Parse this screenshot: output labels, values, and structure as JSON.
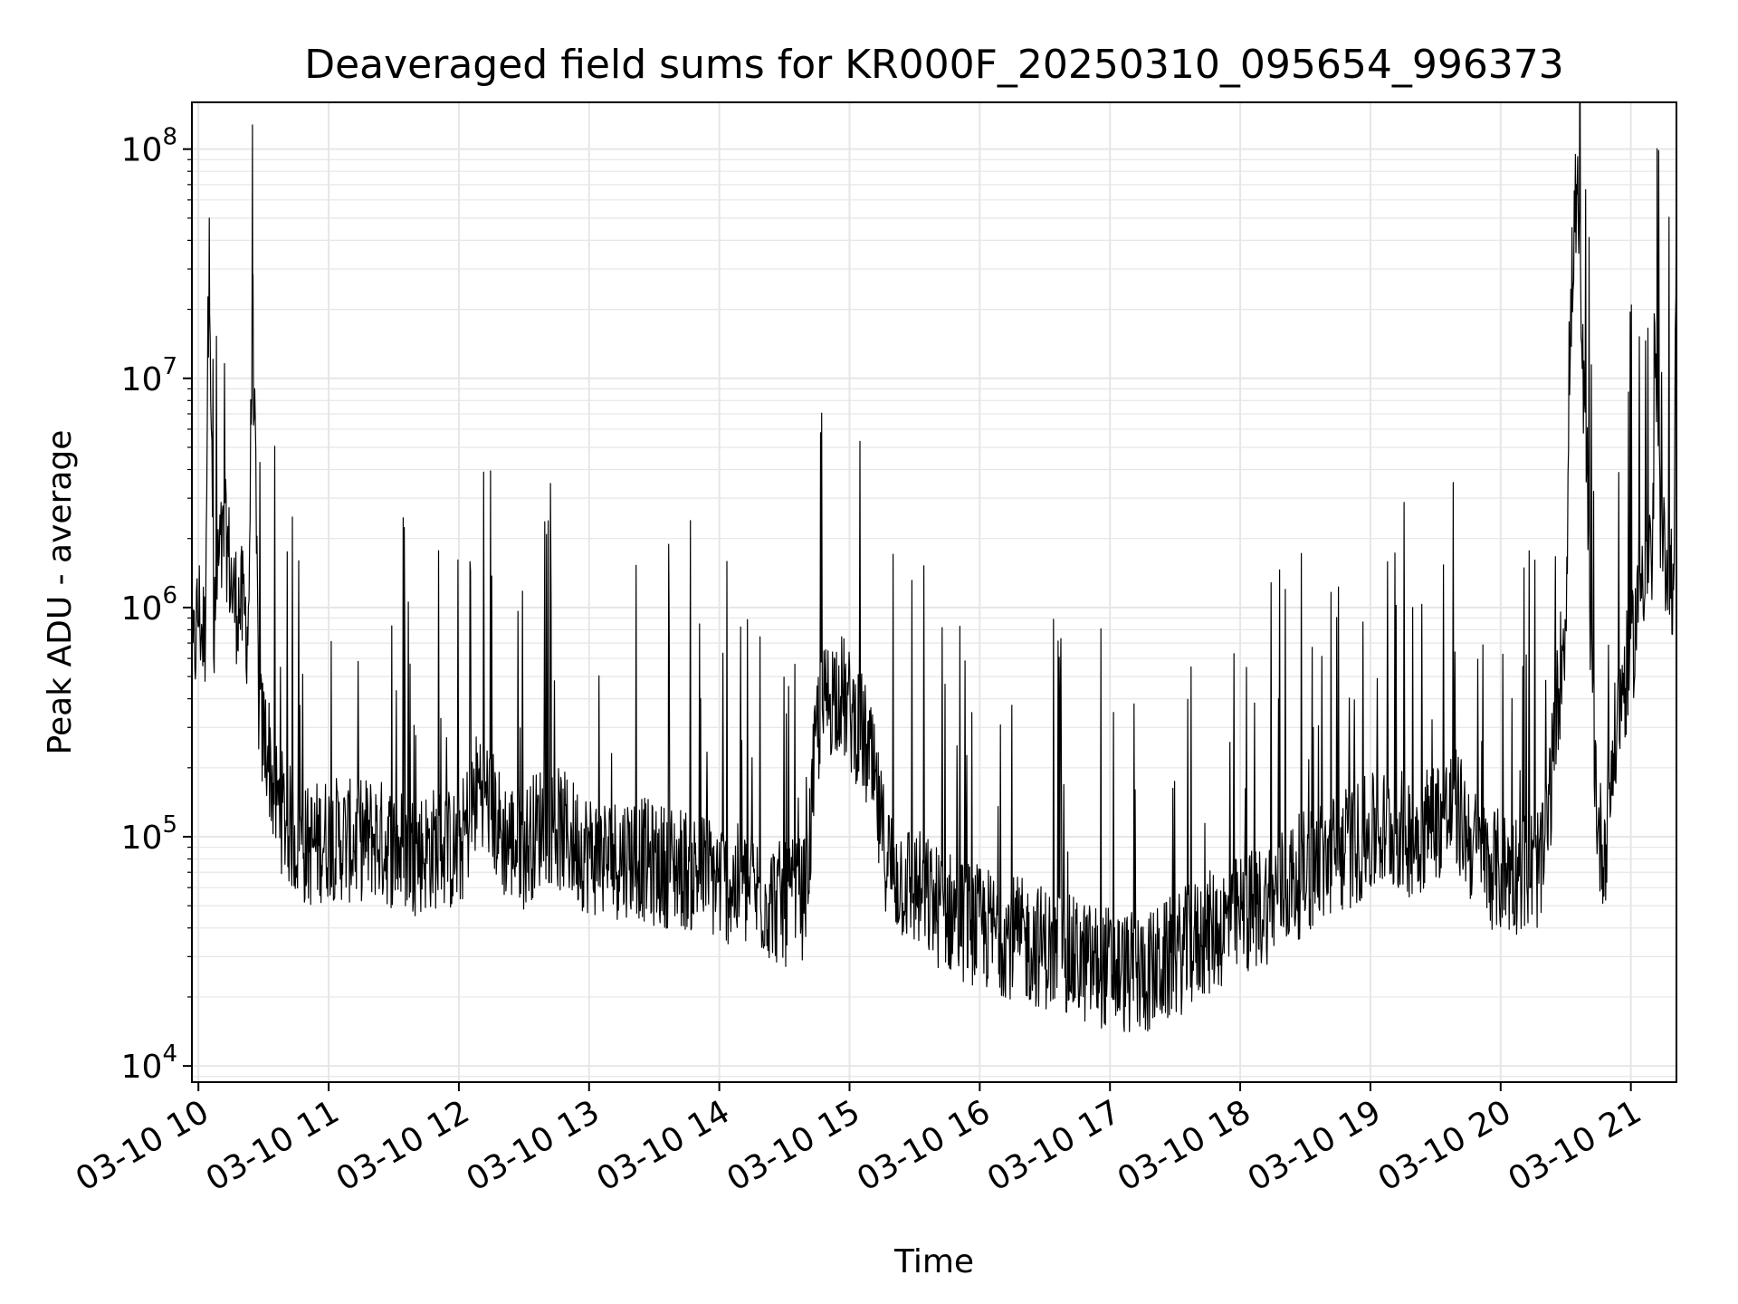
{
  "chart_data": {
    "type": "line",
    "title": "Deaveraged field sums for KR000F_20250310_095654_996373",
    "xlabel": "Time",
    "ylabel": "Peak ADU - average",
    "yscale": "log",
    "ylim": [
      8500,
      160000000
    ],
    "xlim": [
      "2025-03-10 09:57",
      "2025-03-10 21:21"
    ],
    "grid": true,
    "line_color": "#000000",
    "grid_color": "#e6e6e6",
    "x_ticks": [
      {
        "t": "2025-03-10 10:00",
        "label": "03-10 10"
      },
      {
        "t": "2025-03-10 11:00",
        "label": "03-10 11"
      },
      {
        "t": "2025-03-10 12:00",
        "label": "03-10 12"
      },
      {
        "t": "2025-03-10 13:00",
        "label": "03-10 13"
      },
      {
        "t": "2025-03-10 14:00",
        "label": "03-10 14"
      },
      {
        "t": "2025-03-10 15:00",
        "label": "03-10 15"
      },
      {
        "t": "2025-03-10 16:00",
        "label": "03-10 16"
      },
      {
        "t": "2025-03-10 17:00",
        "label": "03-10 17"
      },
      {
        "t": "2025-03-10 18:00",
        "label": "03-10 18"
      },
      {
        "t": "2025-03-10 19:00",
        "label": "03-10 19"
      },
      {
        "t": "2025-03-10 20:00",
        "label": "03-10 20"
      },
      {
        "t": "2025-03-10 21:00",
        "label": "03-10 21"
      }
    ],
    "y_ticks": [
      {
        "value": 10000,
        "mantissa": "10",
        "exp": "4"
      },
      {
        "value": 100000,
        "mantissa": "10",
        "exp": "5"
      },
      {
        "value": 1000000,
        "mantissa": "10",
        "exp": "6"
      },
      {
        "value": 10000000,
        "mantissa": "10",
        "exp": "7"
      },
      {
        "value": 100000000,
        "mantissa": "10",
        "exp": "8"
      }
    ],
    "series": [
      {
        "points": [
          [
            "2025-03-10 09:57",
            500000
          ],
          [
            "2025-03-10 10:00",
            1000000
          ],
          [
            "2025-03-10 10:03",
            700000
          ],
          [
            "2025-03-10 10:05",
            50000000
          ],
          [
            "2025-03-10 10:07",
            600000
          ],
          [
            "2025-03-10 10:09",
            1500000
          ],
          [
            "2025-03-10 10:13",
            2000000
          ],
          [
            "2025-03-10 10:16",
            1100000
          ],
          [
            "2025-03-10 10:20",
            1000000
          ],
          [
            "2025-03-10 10:23",
            800000
          ],
          [
            "2025-03-10 10:25",
            20000000
          ],
          [
            "2025-03-10 10:26",
            5000000
          ],
          [
            "2025-03-10 10:28",
            300000
          ],
          [
            "2025-03-10 10:32",
            250000
          ],
          [
            "2025-03-10 10:35",
            150000
          ],
          [
            "2025-03-10 10:40",
            120000
          ],
          [
            "2025-03-10 10:45",
            100000
          ],
          [
            "2025-03-10 10:50",
            90000
          ],
          [
            "2025-03-10 11:00",
            100000
          ],
          [
            "2025-03-10 11:10",
            95000
          ],
          [
            "2025-03-10 11:20",
            100000
          ],
          [
            "2025-03-10 11:30",
            90000
          ],
          [
            "2025-03-10 11:40",
            85000
          ],
          [
            "2025-03-10 11:50",
            90000
          ],
          [
            "2025-03-10 12:00",
            85000
          ],
          [
            "2025-03-10 12:10",
            180000
          ],
          [
            "2025-03-10 12:20",
            100000
          ],
          [
            "2025-03-10 12:30",
            90000
          ],
          [
            "2025-03-10 12:40",
            120000
          ],
          [
            "2025-03-10 12:50",
            100000
          ],
          [
            "2025-03-10 13:00",
            85000
          ],
          [
            "2025-03-10 13:10",
            80000
          ],
          [
            "2025-03-10 13:20",
            85000
          ],
          [
            "2025-03-10 13:30",
            75000
          ],
          [
            "2025-03-10 13:40",
            75000
          ],
          [
            "2025-03-10 13:50",
            70000
          ],
          [
            "2025-03-10 14:00",
            65000
          ],
          [
            "2025-03-10 14:10",
            60000
          ],
          [
            "2025-03-10 14:20",
            55000
          ],
          [
            "2025-03-10 14:30",
            50000
          ],
          [
            "2025-03-10 14:40",
            55000
          ],
          [
            "2025-03-10 14:45",
            300000
          ],
          [
            "2025-03-10 14:50",
            400000
          ],
          [
            "2025-03-10 14:55",
            450000
          ],
          [
            "2025-03-10 15:00",
            350000
          ],
          [
            "2025-03-10 15:05",
            300000
          ],
          [
            "2025-03-10 15:10",
            200000
          ],
          [
            "2025-03-10 15:15",
            100000
          ],
          [
            "2025-03-10 15:20",
            70000
          ],
          [
            "2025-03-10 15:30",
            60000
          ],
          [
            "2025-03-10 15:40",
            50000
          ],
          [
            "2025-03-10 15:50",
            45000
          ],
          [
            "2025-03-10 16:00",
            40000
          ],
          [
            "2025-03-10 16:10",
            38000
          ],
          [
            "2025-03-10 16:20",
            35000
          ],
          [
            "2025-03-10 16:30",
            33000
          ],
          [
            "2025-03-10 16:40",
            30000
          ],
          [
            "2025-03-10 16:50",
            28000
          ],
          [
            "2025-03-10 17:00",
            27000
          ],
          [
            "2025-03-10 17:10",
            25000
          ],
          [
            "2025-03-10 17:20",
            26000
          ],
          [
            "2025-03-10 17:30",
            30000
          ],
          [
            "2025-03-10 17:40",
            35000
          ],
          [
            "2025-03-10 17:50",
            40000
          ],
          [
            "2025-03-10 18:00",
            45000
          ],
          [
            "2025-03-10 18:10",
            50000
          ],
          [
            "2025-03-10 18:20",
            60000
          ],
          [
            "2025-03-10 18:30",
            70000
          ],
          [
            "2025-03-10 18:40",
            80000
          ],
          [
            "2025-03-10 18:50",
            90000
          ],
          [
            "2025-03-10 19:00",
            100000
          ],
          [
            "2025-03-10 19:10",
            110000
          ],
          [
            "2025-03-10 19:20",
            100000
          ],
          [
            "2025-03-10 19:30",
            120000
          ],
          [
            "2025-03-10 19:40",
            130000
          ],
          [
            "2025-03-10 19:50",
            80000
          ],
          [
            "2025-03-10 20:00",
            70000
          ],
          [
            "2025-03-10 20:10",
            70000
          ],
          [
            "2025-03-10 20:20",
            75000
          ],
          [
            "2025-03-10 20:30",
            1000000
          ],
          [
            "2025-03-10 20:33",
            30000000
          ],
          [
            "2025-03-10 20:35",
            70000000
          ],
          [
            "2025-03-10 20:37",
            20000000
          ],
          [
            "2025-03-10 20:40",
            2000000
          ],
          [
            "2025-03-10 20:42",
            500000
          ],
          [
            "2025-03-10 20:45",
            100000
          ],
          [
            "2025-03-10 20:48",
            90000
          ],
          [
            "2025-03-10 20:50",
            150000
          ],
          [
            "2025-03-10 20:55",
            400000
          ],
          [
            "2025-03-10 21:00",
            600000
          ],
          [
            "2025-03-10 21:05",
            1500000
          ],
          [
            "2025-03-10 21:10",
            1700000
          ],
          [
            "2025-03-10 21:12",
            11000000
          ],
          [
            "2025-03-10 21:14",
            1600000
          ],
          [
            "2025-03-10 21:17",
            1800000
          ],
          [
            "2025-03-10 21:20",
            1200000
          ],
          [
            "2025-03-10 21:21",
            100000000
          ]
        ],
        "noise_decades": 0.55,
        "spike_decades": 1.1
      }
    ]
  }
}
